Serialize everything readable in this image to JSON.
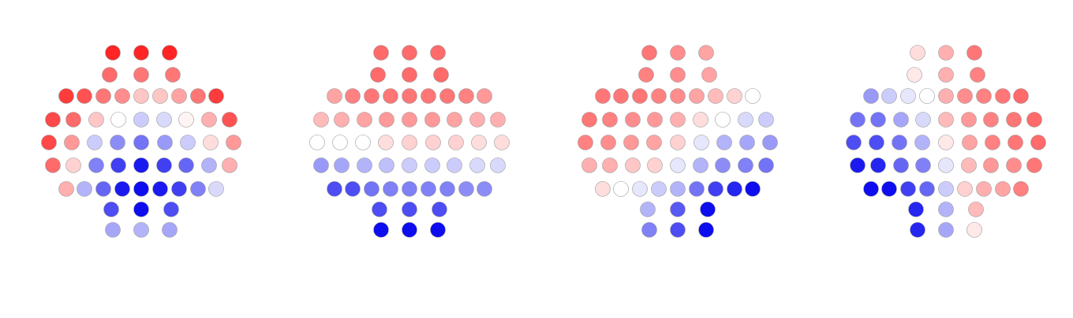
{
  "chart_data": {
    "type": "heatmap",
    "title": "",
    "xlabel": "",
    "ylabel": "",
    "legend": "none",
    "grid": false,
    "value_range": [
      -1,
      1
    ],
    "colormap": {
      "negative": "#0000ee",
      "zero": "#ffffff",
      "positive": "#ff1a1a"
    },
    "panels": [
      {
        "name": "",
        "rows": [
          [
            0.95,
            0.95,
            0.95
          ],
          [
            0.65,
            0.6,
            0.6
          ],
          [
            0.85,
            0.75,
            0.6,
            0.5,
            0.25,
            0.25,
            0.4,
            0.6,
            0.85
          ],
          [
            0.8,
            0.65,
            0.25,
            0.0,
            -0.2,
            -0.15,
            0.05,
            0.35,
            0.75
          ],
          [
            0.8,
            0.45,
            -0.2,
            -0.45,
            -0.55,
            -0.4,
            -0.2,
            0.15,
            0.45
          ],
          [
            0.65,
            0.2,
            -0.5,
            -0.75,
            -0.9,
            -0.75,
            -0.6,
            -0.3,
            0.35
          ],
          [
            0.35,
            -0.3,
            -0.6,
            -0.9,
            -0.95,
            -0.9,
            -0.75,
            -0.5,
            -0.15
          ],
          [
            -0.7,
            -0.95,
            -0.7
          ],
          [
            -0.35,
            -0.3,
            -0.35
          ]
        ]
      },
      {
        "name": "",
        "rows": [
          [
            0.65,
            0.65,
            0.65
          ],
          [
            0.65,
            0.65,
            0.65
          ],
          [
            0.4,
            0.55,
            0.6,
            0.6,
            0.6,
            0.6,
            0.6,
            0.55,
            0.45
          ],
          [
            0.3,
            0.35,
            0.4,
            0.45,
            0.45,
            0.45,
            0.4,
            0.35,
            0.35
          ],
          [
            0.0,
            0.0,
            0.0,
            0.15,
            0.2,
            0.2,
            0.2,
            0.15,
            0.15
          ],
          [
            -0.4,
            -0.35,
            -0.3,
            -0.25,
            -0.2,
            -0.2,
            -0.2,
            -0.15,
            -0.15
          ],
          [
            -0.7,
            -0.7,
            -0.55,
            -0.5,
            -0.5,
            -0.5,
            -0.5,
            -0.45,
            -0.45
          ],
          [
            -0.7,
            -0.7,
            -0.7
          ],
          [
            -0.95,
            -0.95,
            -0.95
          ]
        ]
      },
      {
        "name": "",
        "rows": [
          [
            0.6,
            0.5,
            0.4
          ],
          [
            0.55,
            0.5,
            0.4
          ],
          [
            0.6,
            0.6,
            0.6,
            0.55,
            0.5,
            0.4,
            0.3,
            0.2,
            0.0
          ],
          [
            0.6,
            0.55,
            0.5,
            0.45,
            0.35,
            0.15,
            0.0,
            -0.15,
            -0.2
          ],
          [
            0.55,
            0.5,
            0.45,
            0.4,
            0.2,
            -0.1,
            -0.3,
            -0.35,
            -0.4
          ],
          [
            0.35,
            0.35,
            0.25,
            0.2,
            -0.1,
            -0.3,
            -0.45,
            -0.5,
            -0.55
          ],
          [
            0.15,
            0.0,
            -0.1,
            -0.2,
            -0.3,
            -0.55,
            -0.75,
            -0.85,
            -0.95
          ],
          [
            -0.3,
            -0.65,
            -0.95
          ],
          [
            -0.5,
            -0.7,
            -0.95
          ]
        ]
      },
      {
        "name": "",
        "rows": [
          [
            0.15,
            0.35,
            0.6
          ],
          [
            0.1,
            0.35,
            0.55
          ],
          [
            -0.4,
            -0.2,
            -0.1,
            0.0,
            0.35,
            0.5,
            0.55,
            0.6,
            0.65
          ],
          [
            -0.55,
            -0.55,
            -0.35,
            -0.15,
            0.3,
            0.45,
            0.55,
            0.6,
            0.65
          ],
          [
            -0.7,
            -0.7,
            -0.55,
            -0.3,
            0.1,
            0.4,
            0.55,
            0.6,
            0.65
          ],
          [
            -0.9,
            -0.85,
            -0.6,
            -0.5,
            -0.1,
            0.3,
            0.45,
            0.5,
            0.6
          ],
          [
            -0.95,
            -0.95,
            -0.75,
            -0.6,
            -0.2,
            0.2,
            0.35,
            0.4,
            0.55
          ],
          [
            -0.85,
            -0.3,
            0.3
          ],
          [
            -0.85,
            -0.35,
            0.1
          ]
        ]
      }
    ]
  }
}
